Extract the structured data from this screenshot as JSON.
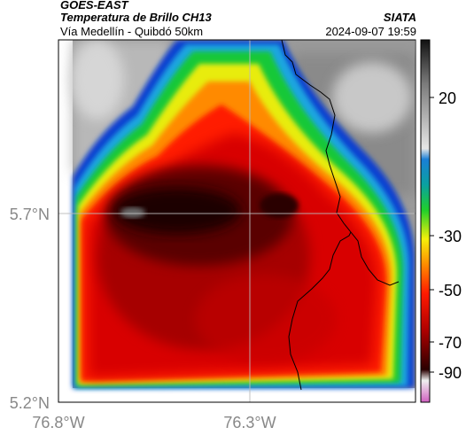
{
  "header": {
    "satellite": "GOES-EAST",
    "product": "Temperatura de Brillo CH13",
    "region": "Vía Medellín - Quibdó 50km",
    "agency": "SIATA",
    "datetime": "2024-09-07 19:59"
  },
  "map": {
    "lat_labels": [
      "5.7°N",
      "5.2°N"
    ],
    "lon_labels": [
      "76.8°W",
      "76.3°W"
    ]
  },
  "colorbar": {
    "tick_labels": [
      "20",
      "-30",
      "-50",
      "-70",
      "-90"
    ],
    "colors": [
      "#111111",
      "#7a7a7a",
      "#e6e6e6",
      "#1a7fd6",
      "#1fd02a",
      "#f6f00a",
      "#ff1a00",
      "#b00000",
      "#2a0000",
      "#d060c0"
    ]
  }
}
